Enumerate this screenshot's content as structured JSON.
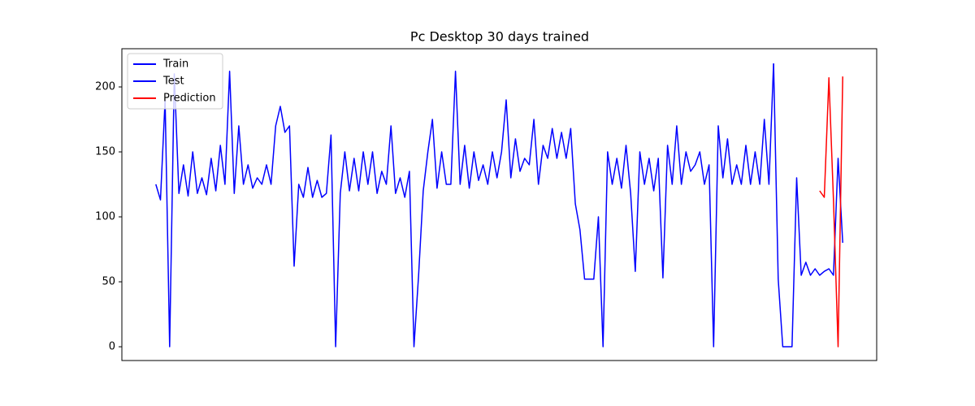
{
  "chart_data": {
    "type": "line",
    "title": "Pc Desktop 30 days trained",
    "categories": [
      null,
      null,
      null,
      null,
      null,
      null,
      null,
      null,
      null,
      null,
      null,
      null,
      null,
      null,
      null,
      null,
      null,
      null,
      null,
      null,
      null,
      null,
      null,
      null,
      null,
      null,
      null,
      null,
      null,
      null,
      null,
      null,
      null,
      null,
      null,
      null,
      null,
      null,
      null,
      null,
      null,
      null,
      null,
      null,
      null,
      null,
      null,
      null,
      null,
      null,
      null,
      null,
      null,
      null,
      null,
      null,
      null,
      null,
      null,
      null,
      null,
      null,
      null,
      null,
      null,
      null,
      null,
      null,
      null,
      null,
      null,
      null,
      null,
      null,
      null,
      null,
      null,
      null,
      null,
      null,
      null,
      null,
      null,
      null,
      null,
      null,
      null,
      null,
      null,
      null,
      null,
      null,
      null,
      null,
      null,
      null,
      null,
      null,
      null,
      null,
      null,
      null,
      null,
      null,
      null,
      null,
      null,
      null,
      null,
      null,
      null,
      null,
      null,
      null,
      null,
      null,
      null,
      null,
      null,
      null,
      null,
      null,
      null,
      null,
      null,
      null,
      null,
      null,
      null,
      null,
      null,
      null,
      null,
      null,
      null,
      null,
      null,
      null,
      null,
      null,
      null,
      null,
      null,
      null,
      null,
      null,
      null,
      null,
      null,
      null
    ],
    "series": [
      {
        "name": "Train",
        "color": "#0000ff",
        "values": [
          125,
          113,
          190,
          0,
          210,
          118,
          140,
          116,
          150,
          118,
          130,
          117,
          145,
          120,
          155,
          125,
          212,
          118,
          170,
          125,
          140,
          122,
          130,
          125,
          140,
          125,
          170,
          185,
          165,
          170,
          62,
          125,
          115,
          138,
          115,
          128,
          115,
          118,
          163,
          0,
          118,
          150,
          120,
          145,
          120,
          150,
          125,
          150,
          118,
          135,
          125,
          170,
          118,
          130,
          115,
          135,
          0,
          55,
          120,
          150,
          175,
          122,
          150,
          125,
          125,
          212,
          125,
          155,
          122,
          150,
          128,
          140,
          125,
          150,
          130,
          150,
          190,
          130,
          160,
          135,
          145,
          140,
          175,
          125,
          155,
          145,
          168,
          145,
          165,
          145,
          168,
          110,
          90,
          52,
          52,
          52,
          100,
          0,
          150,
          125,
          145,
          122,
          155,
          118,
          58,
          150,
          125,
          145,
          120,
          145,
          53,
          155,
          125,
          170,
          125,
          150,
          135,
          140,
          150,
          125,
          140,
          0,
          170,
          130,
          160,
          125,
          140,
          125,
          155,
          125,
          150,
          125,
          175,
          125,
          218,
          null,
          null,
          null,
          null,
          null,
          null,
          null,
          null,
          null,
          null,
          null,
          null,
          null,
          null,
          null
        ]
      },
      {
        "name": "Test",
        "color": "#0000ff",
        "values": [
          null,
          null,
          null,
          null,
          null,
          null,
          null,
          null,
          null,
          null,
          null,
          null,
          null,
          null,
          null,
          null,
          null,
          null,
          null,
          null,
          null,
          null,
          null,
          null,
          null,
          null,
          null,
          null,
          null,
          null,
          null,
          null,
          null,
          null,
          null,
          null,
          null,
          null,
          null,
          null,
          null,
          null,
          null,
          null,
          null,
          null,
          null,
          null,
          null,
          null,
          null,
          null,
          null,
          null,
          null,
          null,
          null,
          null,
          null,
          null,
          null,
          null,
          null,
          null,
          null,
          null,
          null,
          null,
          null,
          null,
          null,
          null,
          null,
          null,
          null,
          null,
          null,
          null,
          null,
          null,
          null,
          null,
          null,
          null,
          null,
          null,
          null,
          null,
          null,
          null,
          null,
          null,
          null,
          null,
          null,
          null,
          null,
          null,
          null,
          null,
          null,
          null,
          null,
          null,
          null,
          null,
          null,
          null,
          null,
          null,
          null,
          null,
          null,
          null,
          null,
          null,
          null,
          null,
          null,
          null,
          null,
          null,
          null,
          null,
          null,
          null,
          null,
          null,
          null,
          null,
          null,
          null,
          null,
          null,
          218,
          52,
          0,
          0,
          0,
          130,
          55,
          65,
          55,
          60,
          55,
          58,
          60,
          55,
          145,
          80
        ]
      },
      {
        "name": "Prediction",
        "color": "#ff0000",
        "values": [
          null,
          null,
          null,
          null,
          null,
          null,
          null,
          null,
          null,
          null,
          null,
          null,
          null,
          null,
          null,
          null,
          null,
          null,
          null,
          null,
          null,
          null,
          null,
          null,
          null,
          null,
          null,
          null,
          null,
          null,
          null,
          null,
          null,
          null,
          null,
          null,
          null,
          null,
          null,
          null,
          null,
          null,
          null,
          null,
          null,
          null,
          null,
          null,
          null,
          null,
          null,
          null,
          null,
          null,
          null,
          null,
          null,
          null,
          null,
          null,
          null,
          null,
          null,
          null,
          null,
          null,
          null,
          null,
          null,
          null,
          null,
          null,
          null,
          null,
          null,
          null,
          null,
          null,
          null,
          null,
          null,
          null,
          null,
          null,
          null,
          null,
          null,
          null,
          null,
          null,
          null,
          null,
          null,
          null,
          null,
          null,
          null,
          null,
          null,
          null,
          null,
          null,
          null,
          null,
          null,
          null,
          null,
          null,
          null,
          null,
          null,
          null,
          null,
          null,
          null,
          null,
          null,
          null,
          null,
          null,
          null,
          null,
          null,
          null,
          null,
          null,
          null,
          null,
          null,
          null,
          null,
          null,
          null,
          null,
          null,
          null,
          null,
          null,
          null,
          null,
          null,
          null,
          null,
          null,
          120,
          115,
          207,
          113,
          0,
          208
        ]
      }
    ],
    "ylim": [
      -10.6,
      229.4
    ],
    "yticks": [
      0,
      50,
      100,
      150,
      200
    ],
    "grid": false,
    "legend": "upper left"
  }
}
